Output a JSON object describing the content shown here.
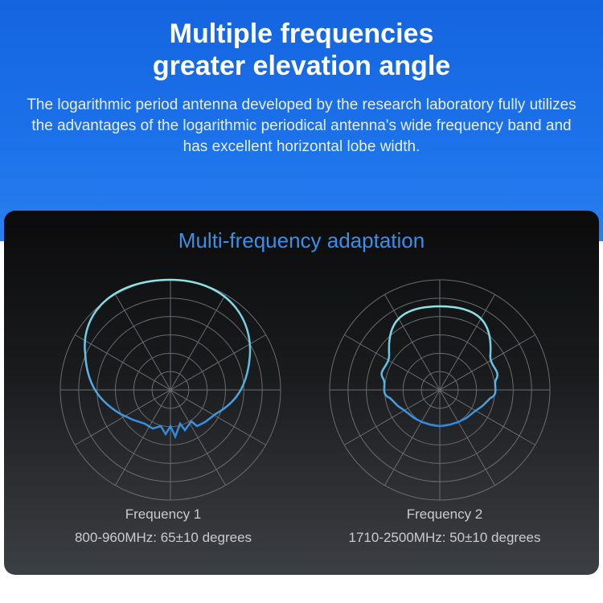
{
  "header": {
    "title_line1": "Multiple frequencies",
    "title_line2": "greater elevation angle",
    "description": "The logarithmic period antenna developed by the research laboratory fully utilizes the advantages of the logarithmic periodical antenna's wide frequency band and has excellent horizontal lobe width."
  },
  "panel": {
    "title": "Multi-frequency adaptation",
    "patterns": [
      {
        "name": "Frequency 1",
        "spec": "800-960MHz: 65±10 degrees"
      },
      {
        "name": "Frequency 2",
        "spec": "1710-2500MHz: 50±10 degrees"
      }
    ]
  },
  "colors": {
    "brand_blue": "#1c72ea",
    "accent_blue": "#3b8fe8",
    "curve_top": "#8de6e6",
    "curve_bottom": "#2f86e0"
  }
}
